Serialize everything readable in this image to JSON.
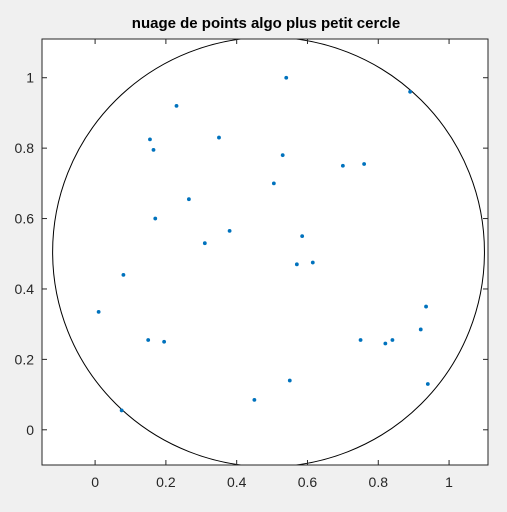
{
  "chart_data": {
    "type": "scatter",
    "title": "nuage de points algo plus petit cercle",
    "xlabel": "",
    "ylabel": "",
    "xlim": [
      -0.15,
      1.11
    ],
    "ylim": [
      -0.1,
      1.11
    ],
    "xticks": [
      0,
      0.2,
      0.4,
      0.6,
      0.8,
      1
    ],
    "xtick_labels": [
      "0",
      "0.2",
      "0.4",
      "0.6",
      "0.8",
      "1"
    ],
    "yticks": [
      0,
      0.2,
      0.4,
      0.6,
      0.8,
      1
    ],
    "ytick_labels": [
      "0",
      "0.2",
      "0.4",
      "0.6",
      "0.8",
      "1"
    ],
    "grid": false,
    "marker_color": "#0072BD",
    "circle_color": "#000000",
    "circle": {
      "center": [
        0.49,
        0.505
      ],
      "radius": 0.61
    },
    "points": [
      {
        "x": 0.54,
        "y": 1.0
      },
      {
        "x": 0.89,
        "y": 0.96
      },
      {
        "x": 0.23,
        "y": 0.92
      },
      {
        "x": 0.35,
        "y": 0.83
      },
      {
        "x": 0.155,
        "y": 0.825
      },
      {
        "x": 0.165,
        "y": 0.795
      },
      {
        "x": 0.53,
        "y": 0.78
      },
      {
        "x": 0.7,
        "y": 0.75
      },
      {
        "x": 0.76,
        "y": 0.755
      },
      {
        "x": 0.505,
        "y": 0.7
      },
      {
        "x": 0.265,
        "y": 0.655
      },
      {
        "x": 0.17,
        "y": 0.6
      },
      {
        "x": 0.38,
        "y": 0.565
      },
      {
        "x": 0.585,
        "y": 0.55
      },
      {
        "x": 0.31,
        "y": 0.53
      },
      {
        "x": 0.57,
        "y": 0.47
      },
      {
        "x": 0.615,
        "y": 0.475
      },
      {
        "x": 0.08,
        "y": 0.44
      },
      {
        "x": 0.01,
        "y": 0.335
      },
      {
        "x": 0.935,
        "y": 0.35
      },
      {
        "x": 0.92,
        "y": 0.285
      },
      {
        "x": 0.15,
        "y": 0.255
      },
      {
        "x": 0.195,
        "y": 0.25
      },
      {
        "x": 0.75,
        "y": 0.255
      },
      {
        "x": 0.82,
        "y": 0.245
      },
      {
        "x": 0.84,
        "y": 0.255
      },
      {
        "x": 0.55,
        "y": 0.14
      },
      {
        "x": 0.94,
        "y": 0.13
      },
      {
        "x": 0.45,
        "y": 0.085
      },
      {
        "x": 0.075,
        "y": 0.055
      }
    ]
  }
}
